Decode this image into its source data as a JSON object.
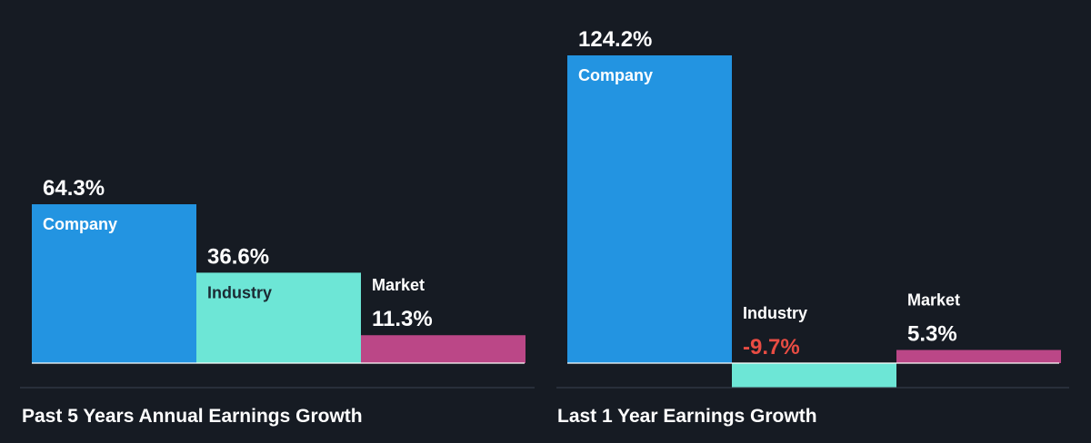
{
  "theme": {
    "background": "#161b23",
    "company_color": "#2394e1",
    "industry_color": "#6de6d6",
    "market_color": "#bb4787",
    "text_color": "#ffffff",
    "negative_color": "#e84c43",
    "bar_text_on_light": "#1b2a33"
  },
  "chart_data": [
    {
      "type": "bar",
      "title": "Past 5 Years Annual Earnings Growth",
      "categories": [
        "Company",
        "Industry",
        "Market"
      ],
      "values": [
        64.3,
        36.6,
        11.3
      ],
      "value_labels": [
        "64.3%",
        "36.6%",
        "11.3%"
      ],
      "unit": "%"
    },
    {
      "type": "bar",
      "title": "Last 1 Year Earnings Growth",
      "categories": [
        "Company",
        "Industry",
        "Market"
      ],
      "values": [
        124.2,
        -9.7,
        5.3
      ],
      "value_labels": [
        "124.2%",
        "-9.7%",
        "5.3%"
      ],
      "unit": "%"
    }
  ]
}
